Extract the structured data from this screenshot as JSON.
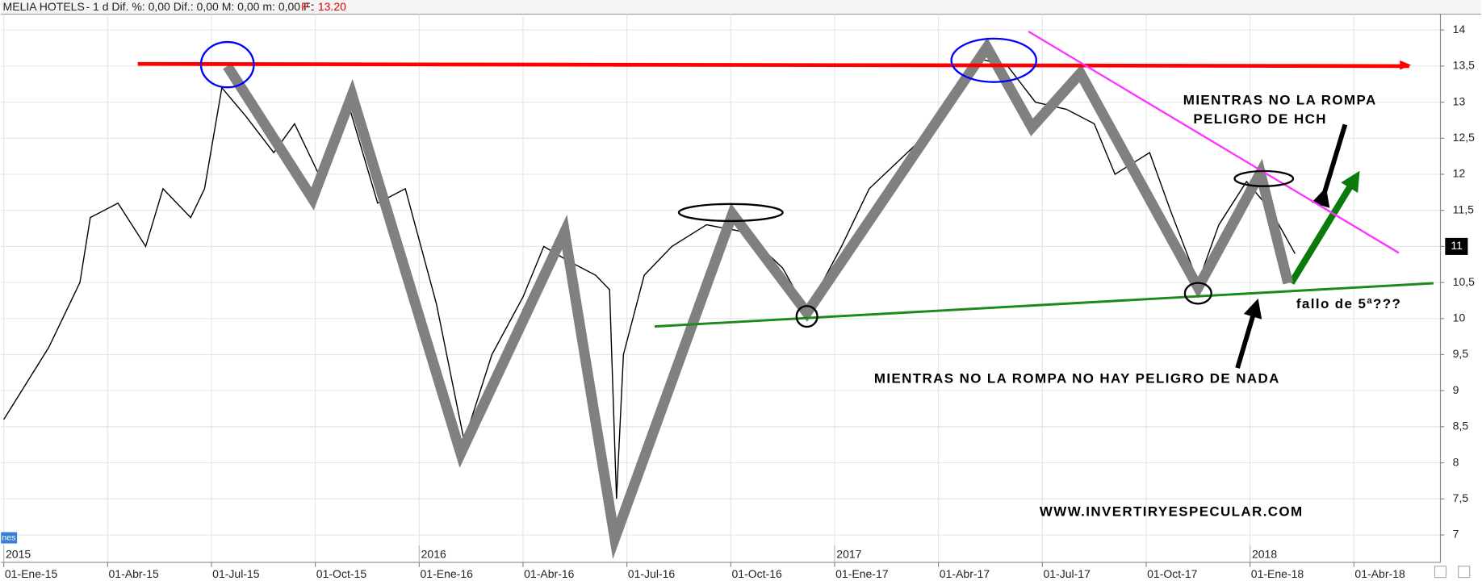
{
  "chart_data": {
    "type": "line",
    "title": "MELIA HOTELS",
    "header": "-  1 d Dif. %: 0,00  Dif.: 0,00  M: 0,00  m: 0,00  F:",
    "header_price": "P : 13.20",
    "volume_tab": "nes",
    "last_price_label": 11,
    "grid": true,
    "xlim": [
      -0.08,
      41.5
    ],
    "ylim": [
      6.62,
      14.22
    ],
    "xticks": [
      {
        "value": 0,
        "label": "01-Ene-15"
      },
      {
        "value": 3,
        "label": "01-Abr-15"
      },
      {
        "value": 6,
        "label": "01-Jul-15"
      },
      {
        "value": 9,
        "label": "01-Oct-15"
      },
      {
        "value": 12,
        "label": "01-Ene-16"
      },
      {
        "value": 15,
        "label": "01-Abr-16"
      },
      {
        "value": 18,
        "label": "01-Jul-16"
      },
      {
        "value": 21,
        "label": "01-Oct-16"
      },
      {
        "value": 24,
        "label": "01-Ene-17"
      },
      {
        "value": 27,
        "label": "01-Abr-17"
      },
      {
        "value": 30,
        "label": "01-Jul-17"
      },
      {
        "value": 33,
        "label": "01-Oct-17"
      },
      {
        "value": 36,
        "label": "01-Ene-18"
      },
      {
        "value": 39,
        "label": "01-Abr-18"
      }
    ],
    "year_ticks": [
      {
        "value": 0,
        "label": "2015"
      },
      {
        "value": 12,
        "label": "2016"
      },
      {
        "value": 24,
        "label": "2017"
      },
      {
        "value": 36,
        "label": "2018"
      }
    ],
    "yticks": [
      7,
      {
        "value": 7.5,
        "label": "7,5"
      },
      8,
      {
        "value": 8.5,
        "label": "8,5"
      },
      9,
      {
        "value": 9.5,
        "label": "9,5"
      },
      10,
      {
        "value": 10.5,
        "label": "10,5"
      },
      11,
      {
        "value": 11.5,
        "label": "11,5"
      },
      12,
      {
        "value": 12.5,
        "label": "12,5"
      },
      13,
      {
        "value": 13.5,
        "label": "13,5"
      },
      14
    ],
    "series": [
      {
        "color": "#000000",
        "x": [
          0,
          1.3,
          2.2,
          2.5,
          3.3,
          4.1,
          4.6,
          5.4,
          5.8,
          6.3,
          7.0,
          7.8,
          8.4,
          9.2,
          10.0,
          10.8,
          11.6,
          12.5,
          13.3,
          14.1,
          15.0,
          15.6,
          16.3,
          17.1,
          17.5,
          17.7,
          17.9,
          18.5,
          19.3,
          20.3,
          21.4,
          22.5,
          23.2,
          24.2,
          25.0,
          26.1,
          27.2,
          28.2,
          29.0,
          29.8,
          30.7,
          31.5,
          32.1,
          33.1,
          33.7,
          34.5,
          35.1,
          35.9,
          36.6,
          37.3
        ],
        "values": [
          8.6,
          9.6,
          10.5,
          11.4,
          11.6,
          11.0,
          11.8,
          11.4,
          11.8,
          13.2,
          12.8,
          12.3,
          12.7,
          11.9,
          12.9,
          11.6,
          11.8,
          10.2,
          8.3,
          9.5,
          10.3,
          11.0,
          10.8,
          10.6,
          10.4,
          7.5,
          9.5,
          10.6,
          11.0,
          11.3,
          11.2,
          10.7,
          10.1,
          11.0,
          11.8,
          12.3,
          12.8,
          13.6,
          13.5,
          13.0,
          12.9,
          12.7,
          12.0,
          12.3,
          11.5,
          10.5,
          11.3,
          11.9,
          11.5,
          10.9
        ]
      }
    ],
    "zigzag": {
      "color": "#808080",
      "x": [
        6.46,
        8.92,
        10.06,
        13.2,
        16.2,
        17.65,
        21.05,
        23.2,
        28.4,
        29.7,
        31.1,
        34.5,
        36.3,
        37.1
      ],
      "values": [
        13.5,
        11.66,
        13.1,
        8.13,
        11.2,
        6.95,
        11.45,
        10.08,
        13.76,
        12.65,
        13.4,
        10.43,
        12.02,
        10.49
      ]
    },
    "lines": [
      {
        "color": "#ff0000",
        "x": [
          3.87,
          40.6
        ],
        "values": [
          13.53,
          13.5
        ]
      },
      {
        "color": "#1a8a1a",
        "x": [
          18.8,
          41.3
        ],
        "values": [
          9.89,
          10.49
        ]
      },
      {
        "color": "#ff33ff",
        "x": [
          29.6,
          40.3
        ],
        "values": [
          13.98,
          10.91
        ]
      }
    ],
    "circles": [
      {
        "color": "#0000ff",
        "x": 6.46,
        "y": 13.52
      },
      {
        "color": "#0000ff",
        "x": 28.6,
        "y": 13.58
      },
      {
        "color": "#000000",
        "x": 21.0,
        "y": 11.47
      },
      {
        "color": "#000000",
        "x": 23.2,
        "y": 10.03
      },
      {
        "color": "#000000",
        "x": 34.5,
        "y": 10.35
      },
      {
        "color": "#000000",
        "x": 36.4,
        "y": 11.94
      }
    ],
    "annotations": [
      "MIENTRAS NO LA ROMPA",
      "PELIGRO DE HCH",
      "fallo de 5ª???",
      "MIENTRAS NO LA ROMPA NO HAY PELIGRO DE NADA",
      "WWW.INVERTIRYESPECULAR.COM"
    ]
  }
}
